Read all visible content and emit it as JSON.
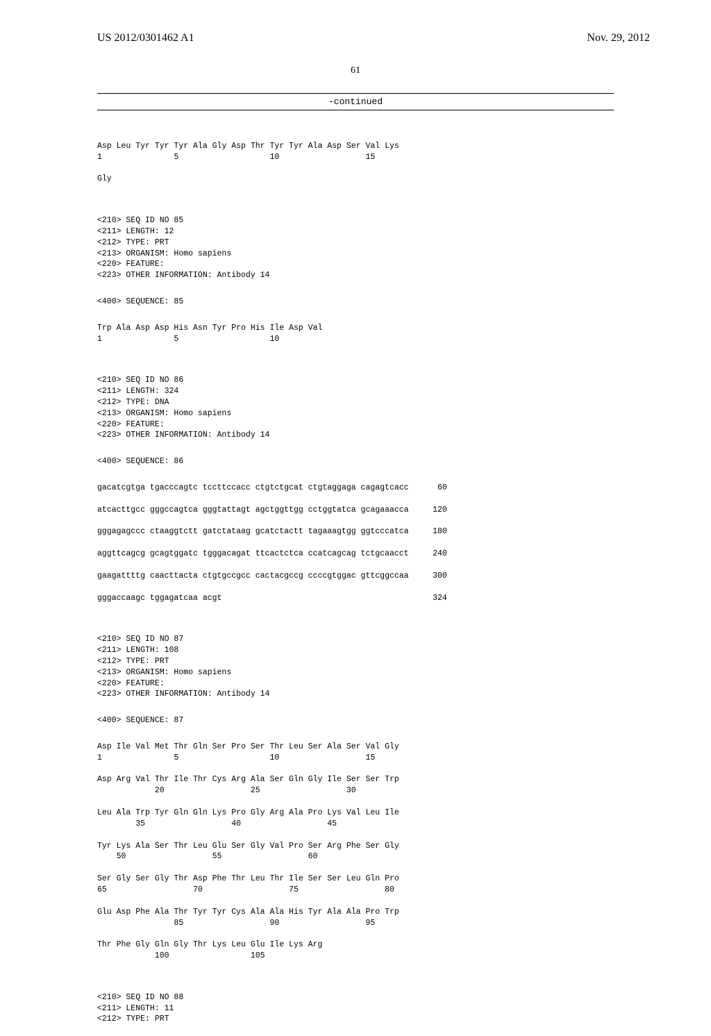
{
  "header": {
    "pub_number": "US 2012/0301462 A1",
    "pub_date": "Nov. 29, 2012"
  },
  "page_number": "61",
  "continued_label": "-continued",
  "seq84_tail": {
    "line1": "Asp Leu Tyr Tyr Tyr Ala Gly Asp Thr Tyr Tyr Ala Asp Ser Val Lys",
    "nums1": "1               5                   10                  15",
    "line2": "Gly"
  },
  "seq85": {
    "h1": "<210> SEQ ID NO 85",
    "h2": "<211> LENGTH: 12",
    "h3": "<212> TYPE: PRT",
    "h4": "<213> ORGANISM: Homo sapiens",
    "h5": "<220> FEATURE:",
    "h6": "<223> OTHER INFORMATION: Antibody 14",
    "seqlabel": "<400> SEQUENCE: 85",
    "line1": "Trp Ala Asp Asp His Asn Tyr Pro His Ile Asp Val",
    "nums1": "1               5                   10"
  },
  "seq86": {
    "h1": "<210> SEQ ID NO 86",
    "h2": "<211> LENGTH: 324",
    "h3": "<212> TYPE: DNA",
    "h4": "<213> ORGANISM: Homo sapiens",
    "h5": "<220> FEATURE:",
    "h6": "<223> OTHER INFORMATION: Antibody 14",
    "seqlabel": "<400> SEQUENCE: 86",
    "dna": [
      {
        "seq": "gacatcgtga tgacccagtc tccttccacc ctgtctgcat ctgtaggaga cagagtcacc",
        "n": " 60"
      },
      {
        "seq": "atcacttgcc gggccagtca gggtattagt agctggttgg cctggtatca gcagaaacca",
        "n": "120"
      },
      {
        "seq": "gggagagccc ctaaggtctt gatctataag gcatctactt tagaaagtgg ggtcccatca",
        "n": "180"
      },
      {
        "seq": "aggttcagcg gcagtggatc tgggacagat ttcactctca ccatcagcag tctgcaacct",
        "n": "240"
      },
      {
        "seq": "gaagattttg caacttacta ctgtgccgcc cactacgccg ccccgtggac gttcggccaa",
        "n": "300"
      },
      {
        "seq": "gggaccaagc tggagatcaa acgt",
        "n": "324"
      }
    ]
  },
  "seq87": {
    "h1": "<210> SEQ ID NO 87",
    "h2": "<211> LENGTH: 108",
    "h3": "<212> TYPE: PRT",
    "h4": "<213> ORGANISM: Homo sapiens",
    "h5": "<220> FEATURE:",
    "h6": "<223> OTHER INFORMATION: Antibody 14",
    "seqlabel": "<400> SEQUENCE: 87",
    "rows": [
      {
        "aa": "Asp Ile Val Met Thr Gln Ser Pro Ser Thr Leu Ser Ala Ser Val Gly",
        "num": "1               5                   10                  15"
      },
      {
        "aa": "Asp Arg Val Thr Ile Thr Cys Arg Ala Ser Gln Gly Ile Ser Ser Trp",
        "num": "            20                  25                  30"
      },
      {
        "aa": "Leu Ala Trp Tyr Gln Gln Lys Pro Gly Arg Ala Pro Lys Val Leu Ile",
        "num": "        35                  40                  45"
      },
      {
        "aa": "Tyr Lys Ala Ser Thr Leu Glu Ser Gly Val Pro Ser Arg Phe Ser Gly",
        "num": "    50                  55                  60"
      },
      {
        "aa": "Ser Gly Ser Gly Thr Asp Phe Thr Leu Thr Ile Ser Ser Leu Gln Pro",
        "num": "65                  70                  75                  80"
      },
      {
        "aa": "Glu Asp Phe Ala Thr Tyr Tyr Cys Ala Ala His Tyr Ala Ala Pro Trp",
        "num": "                85                  90                  95"
      },
      {
        "aa": "Thr Phe Gly Gln Gly Thr Lys Leu Glu Ile Lys Arg",
        "num": "            100                 105"
      }
    ]
  },
  "seq88": {
    "h1": "<210> SEQ ID NO 88",
    "h2": "<211> LENGTH: 11",
    "h3": "<212> TYPE: PRT"
  }
}
